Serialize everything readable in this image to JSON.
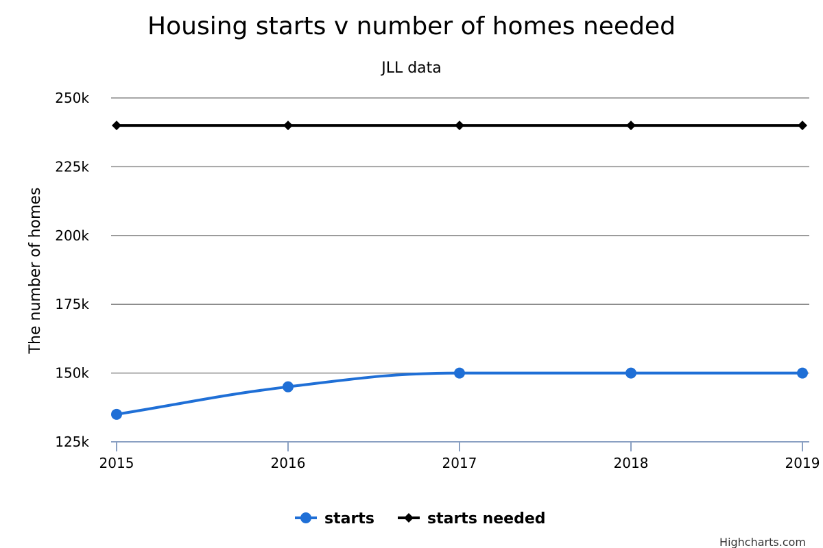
{
  "chart_data": {
    "type": "line",
    "title": "Housing starts v number of homes needed",
    "subtitle": "JLL data",
    "xlabel": "",
    "ylabel": "The number of homes",
    "categories": [
      "2015",
      "2016",
      "2017",
      "2018",
      "2019"
    ],
    "ylim": [
      125000,
      250000
    ],
    "yticks": [
      125000,
      150000,
      175000,
      200000,
      225000,
      250000
    ],
    "ytick_labels": [
      "125k",
      "150k",
      "175k",
      "200k",
      "225k",
      "250k"
    ],
    "grid": true,
    "legend_position": "bottom-center",
    "series": [
      {
        "name": "starts",
        "values": [
          135000,
          145000,
          150000,
          150000,
          150000
        ],
        "color": "#1f6fd6",
        "marker": "circle",
        "smooth": true
      },
      {
        "name": "starts needed",
        "values": [
          240000,
          240000,
          240000,
          240000,
          240000
        ],
        "color": "#000000",
        "marker": "diamond",
        "smooth": false
      }
    ]
  },
  "credits": "Highcharts.com"
}
